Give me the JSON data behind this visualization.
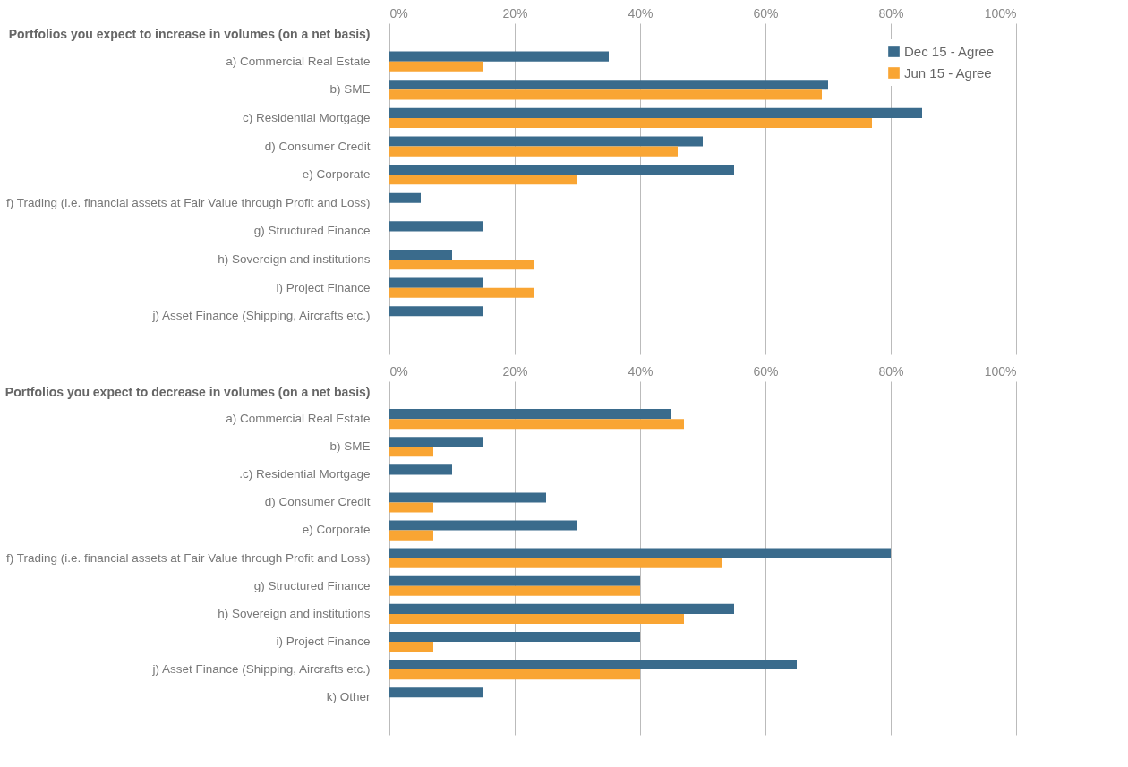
{
  "chart_data": [
    {
      "type": "bar",
      "orientation": "horizontal",
      "title": "Portfolios you expect to increase in volumes (on a net basis)",
      "categories": [
        "a) Commercial Real Estate",
        "b)  SME",
        "c) Residential Mortgage",
        "d) Consumer Credit",
        "e) Corporate",
        "f) Trading (i.e. financial assets at Fair Value through Profit and Loss)",
        "g) Structured Finance",
        "h) Sovereign and institutions",
        "i) Project Finance",
        "j) Asset Finance (Shipping, Aircrafts etc.)"
      ],
      "series": [
        {
          "name": "Dec 15 - Agree",
          "color": "#3a6b8c",
          "values": [
            35,
            70,
            85,
            50,
            55,
            5,
            15,
            10,
            15,
            15
          ]
        },
        {
          "name": "Jun 15 - Agree",
          "color": "#f9a533",
          "values": [
            15,
            69,
            77,
            46,
            30,
            null,
            null,
            23,
            23,
            null
          ]
        }
      ],
      "xlim": [
        0,
        100
      ],
      "xticks": [
        {
          "value": 0,
          "label": "0%"
        },
        {
          "value": 20,
          "label": "20%"
        },
        {
          "value": 40,
          "label": "40%"
        },
        {
          "value": 60,
          "label": "60%"
        },
        {
          "value": 80,
          "label": "80%"
        },
        {
          "value": 100,
          "label": "100%"
        }
      ],
      "grid": "x",
      "legend": "top right"
    },
    {
      "type": "bar",
      "orientation": "horizontal",
      "title": "Portfolios you expect to decrease in volumes (on a net basis)",
      "categories": [
        "a) Commercial Real Estate",
        "b) SME",
        ".c) Residential Mortgage",
        "d) Consumer Credit",
        "e) Corporate",
        "f) Trading (i.e. financial assets at Fair Value through Profit and Loss)",
        "g) Structured Finance",
        "h) Sovereign and institutions",
        "i) Project Finance",
        "j) Asset Finance (Shipping, Aircrafts etc.)",
        "k) Other"
      ],
      "series": [
        {
          "name": "Dec 15 - Agree",
          "color": "#3a6b8c",
          "values": [
            45,
            15,
            10,
            25,
            30,
            80,
            40,
            55,
            40,
            65,
            15
          ]
        },
        {
          "name": "Jun 15 - Agree",
          "color": "#f9a533",
          "values": [
            47,
            7,
            null,
            7,
            7,
            53,
            40,
            47,
            7,
            40,
            null
          ]
        }
      ],
      "xlim": [
        0,
        100
      ],
      "xticks": [
        {
          "value": 0,
          "label": "0%"
        },
        {
          "value": 20,
          "label": "20%"
        },
        {
          "value": 40,
          "label": "40%"
        },
        {
          "value": 60,
          "label": "60%"
        },
        {
          "value": 80,
          "label": "80%"
        },
        {
          "value": 100,
          "label": "100%"
        }
      ],
      "grid": "x",
      "legend": "top right"
    }
  ]
}
